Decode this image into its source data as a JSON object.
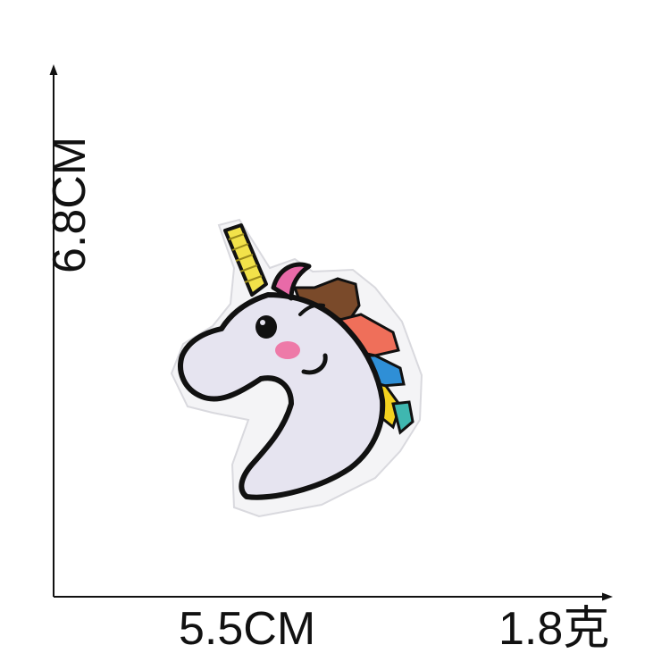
{
  "dimensions": {
    "width_label": "5.5CM",
    "height_label": "6.8CM",
    "weight_label": "1.8克"
  },
  "product": {
    "depiction": "unicorn-embroidered-patch",
    "colors": {
      "outline": "#111111",
      "felt": "#f4f4f6",
      "face": "#e6e4f0",
      "horn": "#f2e24a",
      "ear": "#e86aa8",
      "cheek": "#ee7aa8",
      "mane_brown": "#7a4a2a",
      "mane_coral": "#ef6f5a",
      "mane_blue": "#2f8fd6",
      "mane_yellow": "#f3d21f",
      "mane_teal": "#3fb7b0"
    }
  }
}
